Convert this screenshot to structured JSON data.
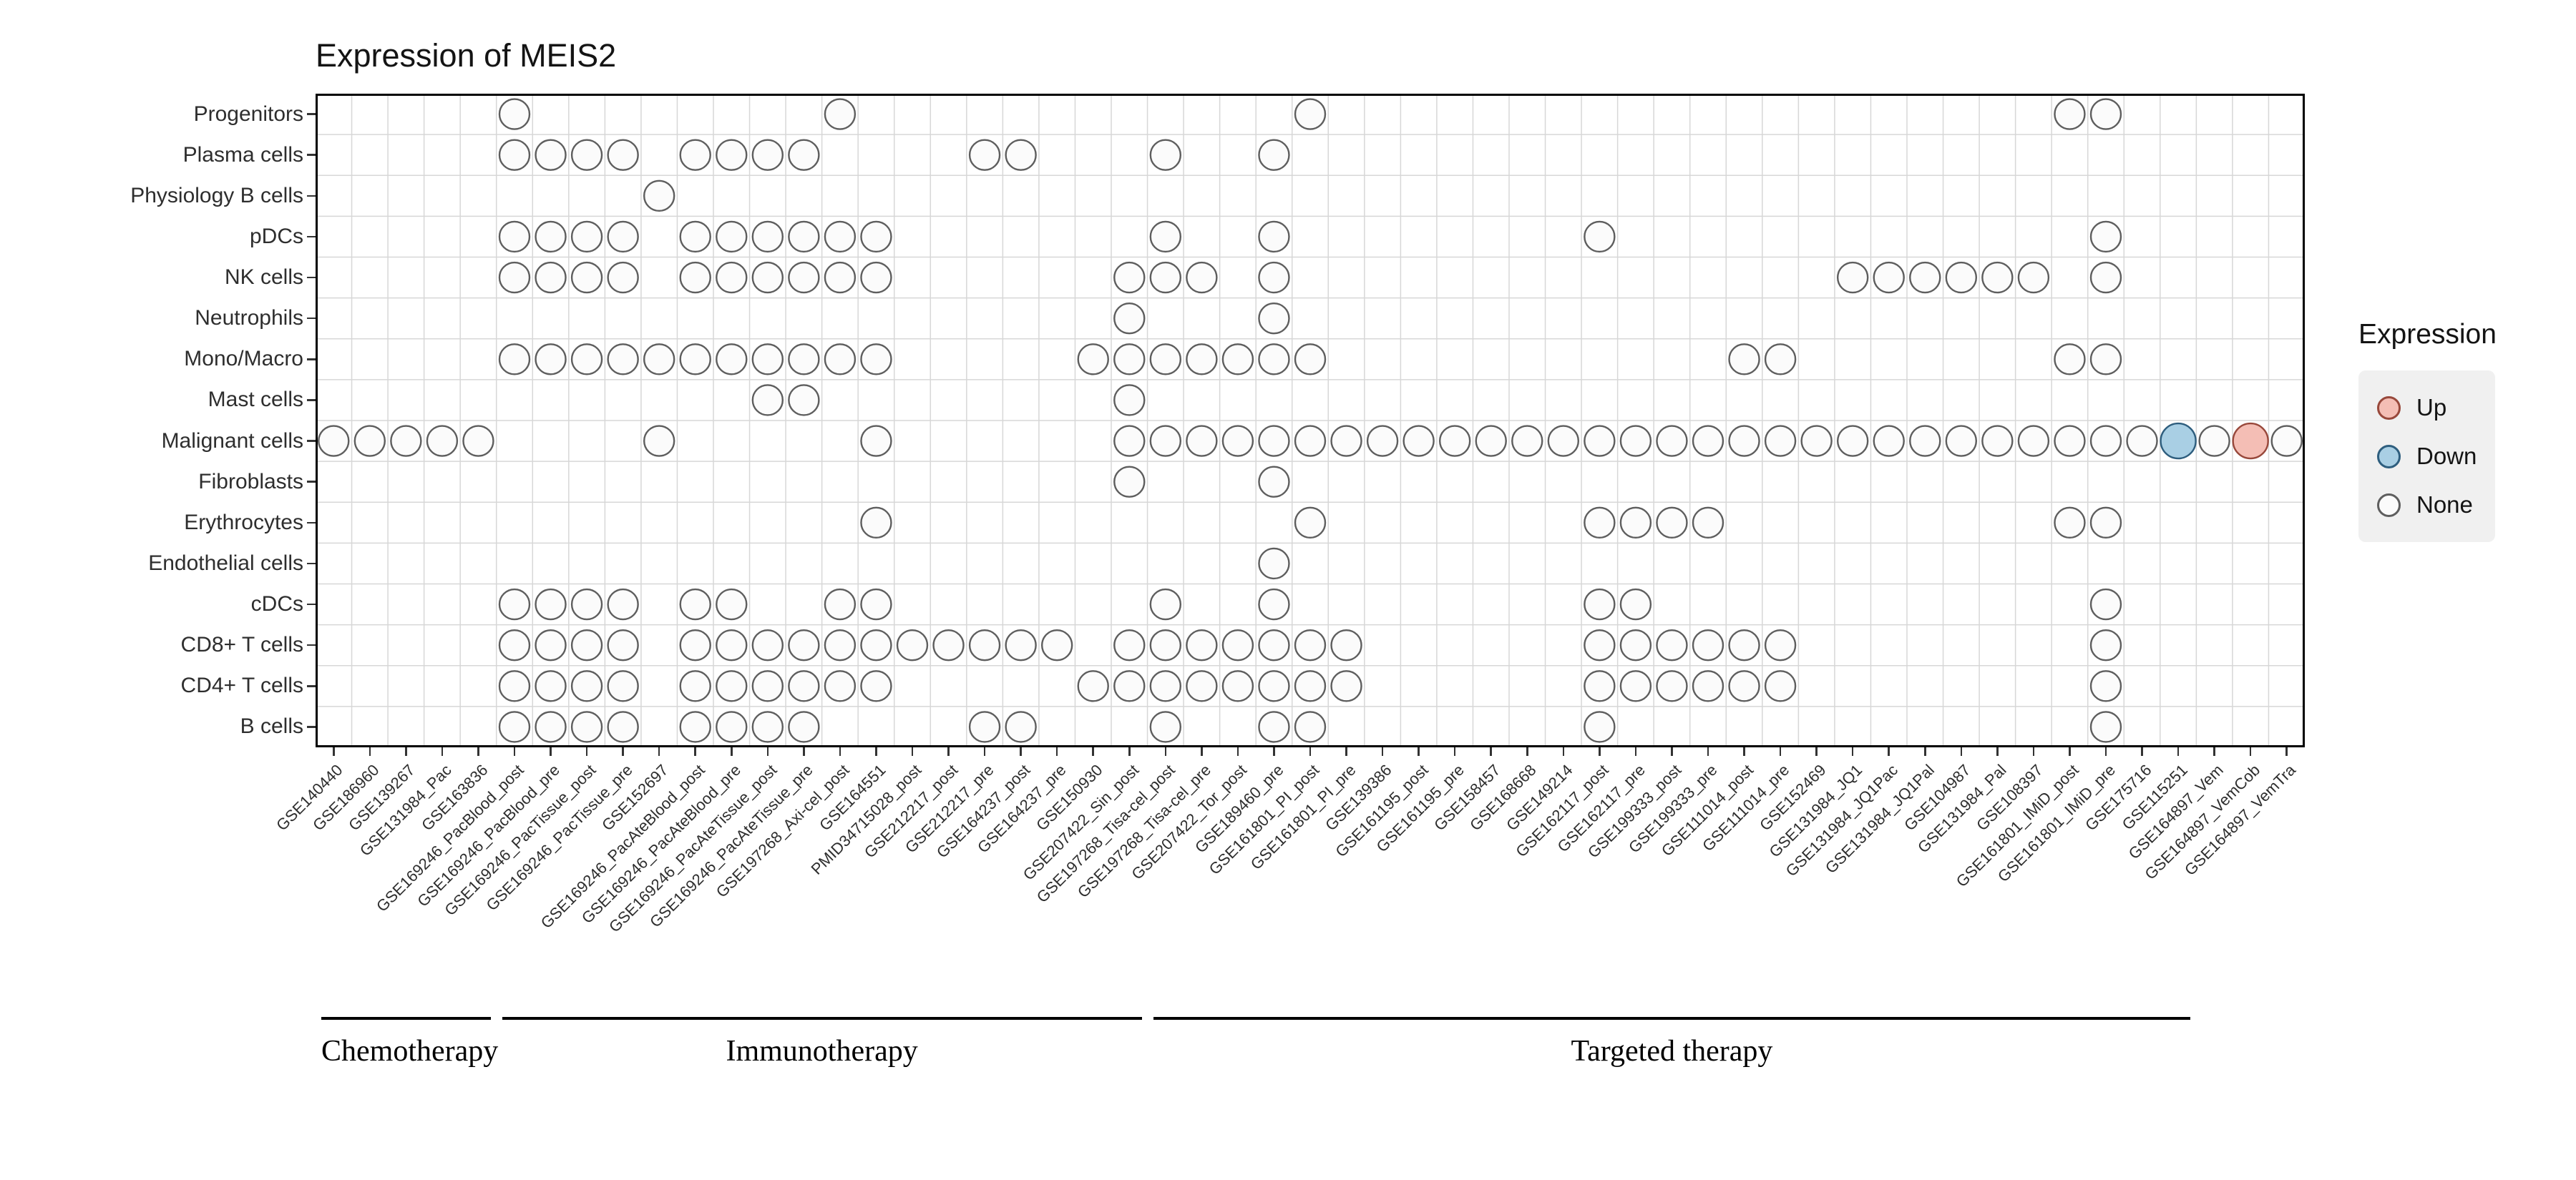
{
  "title": "Expression of MEIS2",
  "legend": {
    "title": "Expression",
    "items": [
      {
        "label": "Up",
        "state": "up"
      },
      {
        "label": "Down",
        "state": "down"
      },
      {
        "label": "None",
        "state": "none"
      }
    ]
  },
  "colors": {
    "up": {
      "fill": "#F4BEB5",
      "stroke": "#98483B",
      "radius": 24.5
    },
    "down": {
      "fill": "#A9CFE4",
      "stroke": "#2E5E7E",
      "radius": 24.5
    },
    "none": {
      "fill": "#FBFBFB",
      "stroke": "#5E5E5E",
      "radius": 21
    },
    "grid": "#D7D7D7",
    "panel_border": "#000000",
    "tick": "#333333"
  },
  "chart_data": {
    "type": "scatter",
    "title": "Expression of MEIS2",
    "xlabel": "",
    "ylabel": "",
    "legend_position": "right",
    "grid": true,
    "rows": [
      "Progenitors",
      "Plasma cells",
      "Physiology B cells",
      "pDCs",
      "NK cells",
      "Neutrophils",
      "Mono/Macro",
      "Mast cells",
      "Malignant cells",
      "Fibroblasts",
      "Erythrocytes",
      "Endothelial cells",
      "cDCs",
      "CD8+ T cells",
      "CD4+ T cells",
      "B cells"
    ],
    "columns": [
      "GSE140440",
      "GSE186960",
      "GSE139267",
      "GSE131984_Pac",
      "GSE163836",
      "GSE169246_PacBlood_post",
      "GSE169246_PacBlood_pre",
      "GSE169246_PacTissue_post",
      "GSE169246_PacTissue_pre",
      "GSE152697",
      "GSE169246_PacAteBlood_post",
      "GSE169246_PacAteBlood_pre",
      "GSE169246_PacAteTissue_post",
      "GSE169246_PacAteTissue_pre",
      "GSE197268_Axi-cel_post",
      "GSE164551",
      "PMID34715028_post",
      "GSE212217_post",
      "GSE212217_pre",
      "GSE164237_post",
      "GSE164237_pre",
      "GSE150930",
      "GSE207422_Sin_post",
      "GSE197268_Tisa-cel_post",
      "GSE197268_Tisa-cel_pre",
      "GSE207422_Tor_post",
      "GSE189460_pre",
      "GSE161801_PI_post",
      "GSE161801_PI_pre",
      "GSE139386",
      "GSE161195_post",
      "GSE161195_pre",
      "GSE158457",
      "GSE168668",
      "GSE149214",
      "GSE162117_post",
      "GSE162117_pre",
      "GSE199333_post",
      "GSE199333_pre",
      "GSE111014_post",
      "GSE111014_pre",
      "GSE152469",
      "GSE131984_JQ1",
      "GSE131984_JQ1Pac",
      "GSE131984_JQ1Pal",
      "GSE104987",
      "GSE131984_Pal",
      "GSE108397",
      "GSE161801_IMiD_post",
      "GSE161801_IMiD_pre",
      "GSE175716",
      "GSE115251",
      "GSE164897_Vem",
      "GSE164897_VemCob",
      "GSE164897_VemTra"
    ],
    "matrix": [
      {
        "row": "Progenitors",
        "cols": [
          6,
          15,
          28,
          49,
          50
        ]
      },
      {
        "row": "Plasma cells",
        "cols": [
          6,
          7,
          8,
          9,
          11,
          12,
          13,
          14,
          19,
          20,
          24,
          27
        ]
      },
      {
        "row": "Physiology B cells",
        "cols": [
          10
        ]
      },
      {
        "row": "pDCs",
        "cols": [
          6,
          7,
          8,
          9,
          11,
          12,
          13,
          14,
          15,
          16,
          24,
          27,
          36,
          50
        ]
      },
      {
        "row": "NK cells",
        "cols": [
          6,
          7,
          8,
          9,
          11,
          12,
          13,
          14,
          15,
          16,
          23,
          24,
          25,
          27,
          43,
          44,
          45,
          46,
          47,
          48,
          50
        ]
      },
      {
        "row": "Neutrophils",
        "cols": [
          23,
          27
        ]
      },
      {
        "row": "Mono/Macro",
        "cols": [
          6,
          7,
          8,
          9,
          10,
          11,
          12,
          13,
          14,
          15,
          16,
          22,
          23,
          24,
          25,
          26,
          27,
          28,
          40,
          41,
          49,
          50
        ]
      },
      {
        "row": "Mast cells",
        "cols": [
          13,
          14,
          23
        ]
      },
      {
        "row": "Malignant cells",
        "cols": [
          1,
          2,
          3,
          4,
          5,
          10,
          16,
          23,
          24,
          25,
          26,
          27,
          28,
          29,
          30,
          31,
          32,
          33,
          34,
          35,
          36,
          37,
          38,
          39,
          40,
          41,
          42,
          43,
          44,
          45,
          46,
          47,
          48,
          49,
          50,
          51,
          52,
          53,
          54,
          55
        ],
        "overrides": {
          "52": "down",
          "54": "up"
        }
      },
      {
        "row": "Fibroblasts",
        "cols": [
          23,
          27
        ]
      },
      {
        "row": "Erythrocytes",
        "cols": [
          16,
          28,
          36,
          37,
          38,
          39,
          49,
          50
        ]
      },
      {
        "row": "Endothelial cells",
        "cols": [
          27
        ]
      },
      {
        "row": "cDCs",
        "cols": [
          6,
          7,
          8,
          9,
          11,
          12,
          15,
          16,
          24,
          27,
          36,
          37,
          50
        ]
      },
      {
        "row": "CD8+ T cells",
        "cols": [
          6,
          7,
          8,
          9,
          11,
          12,
          13,
          14,
          15,
          16,
          17,
          18,
          19,
          20,
          21,
          23,
          24,
          25,
          26,
          27,
          28,
          29,
          36,
          37,
          38,
          39,
          40,
          41,
          50
        ]
      },
      {
        "row": "CD4+ T cells",
        "cols": [
          6,
          7,
          8,
          9,
          11,
          12,
          13,
          14,
          15,
          16,
          22,
          23,
          24,
          25,
          26,
          27,
          28,
          29,
          36,
          37,
          38,
          39,
          40,
          41,
          50
        ]
      },
      {
        "row": "B cells",
        "cols": [
          6,
          7,
          8,
          9,
          11,
          12,
          13,
          14,
          19,
          20,
          24,
          27,
          28,
          36,
          50
        ]
      }
    ],
    "groups": [
      {
        "label": "Chemotherapy",
        "start": 1,
        "end": 5
      },
      {
        "label": "Immunotherapy",
        "start": 6,
        "end": 23
      },
      {
        "label": "Targeted therapy",
        "start": 24,
        "end": 52
      }
    ]
  }
}
